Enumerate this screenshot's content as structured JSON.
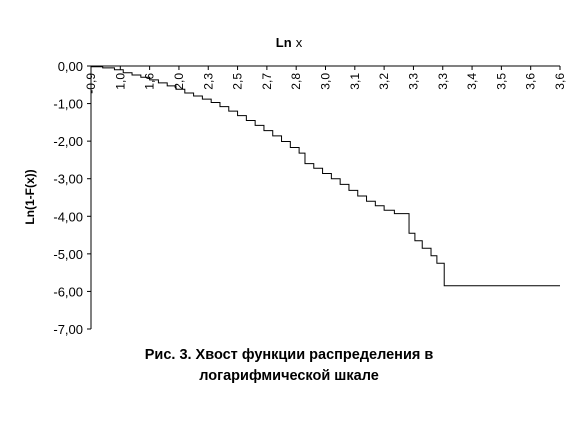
{
  "chart_data": {
    "type": "line",
    "title_parts": [
      "Ln",
      "x"
    ],
    "ylabel": "Ln(1-F(x))",
    "xlabel_position": "top",
    "ylim": [
      -7,
      0
    ],
    "yticks": [
      0,
      -1,
      -2,
      -3,
      -4,
      -5,
      -6,
      -7
    ],
    "ytick_labels": [
      "0,00",
      "-1,00",
      "-2,00",
      "-3,00",
      "-4,00",
      "-5,00",
      "-6,00",
      "-7,00"
    ],
    "x_tick_labels": [
      "-0,9",
      "1,0",
      "1,6",
      "2,0",
      "2,3",
      "2,5",
      "2,7",
      "2,8",
      "3,0",
      "3,1",
      "3,2",
      "3,3",
      "3,3",
      "3,4",
      "3,5",
      "3,6",
      "3,6"
    ],
    "grid": false,
    "series": [
      {
        "color": "#000000",
        "points": [
          [
            0,
            -0.02
          ],
          [
            0.4,
            -0.05
          ],
          [
            0.8,
            -0.1
          ],
          [
            1.1,
            -0.18
          ],
          [
            1.4,
            -0.24
          ],
          [
            1.7,
            -0.3
          ],
          [
            2.0,
            -0.37
          ],
          [
            2.3,
            -0.45
          ],
          [
            2.6,
            -0.53
          ],
          [
            2.9,
            -0.62
          ],
          [
            3.2,
            -0.72
          ],
          [
            3.5,
            -0.8
          ],
          [
            3.8,
            -0.88
          ],
          [
            4.1,
            -0.97
          ],
          [
            4.4,
            -1.08
          ],
          [
            4.7,
            -1.2
          ],
          [
            5.0,
            -1.32
          ],
          [
            5.3,
            -1.45
          ],
          [
            5.6,
            -1.58
          ],
          [
            5.9,
            -1.72
          ],
          [
            6.2,
            -1.86
          ],
          [
            6.5,
            -2.01
          ],
          [
            6.8,
            -2.17
          ],
          [
            7.1,
            -2.32
          ],
          [
            7.3,
            -2.6
          ],
          [
            7.6,
            -2.72
          ],
          [
            7.9,
            -2.86
          ],
          [
            8.2,
            -3.0
          ],
          [
            8.5,
            -3.15
          ],
          [
            8.8,
            -3.31
          ],
          [
            9.1,
            -3.46
          ],
          [
            9.4,
            -3.6
          ],
          [
            9.7,
            -3.72
          ],
          [
            10.0,
            -3.84
          ],
          [
            10.35,
            -3.93
          ],
          [
            10.75,
            -3.93
          ],
          [
            10.85,
            -4.45
          ],
          [
            11.05,
            -4.65
          ],
          [
            11.3,
            -4.85
          ],
          [
            11.6,
            -5.05
          ],
          [
            11.8,
            -5.25
          ],
          [
            12.05,
            -5.85
          ],
          [
            16.0,
            -5.85
          ]
        ]
      }
    ]
  },
  "caption": {
    "line1": "Рис. 3. Хвост функции распределения в",
    "line2": "логарифмической шкале"
  }
}
